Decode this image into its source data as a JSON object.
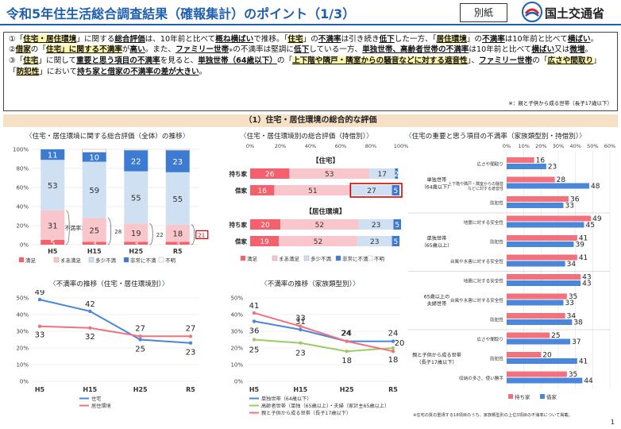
{
  "header": {
    "title": "令和5年住生活総合調査結果（確報集計）のポイント（1/3）",
    "tag": "別紙",
    "ministry": "国土交通省"
  },
  "points": {
    "p1": {
      "a": "①「",
      "b": "住宅・居住環境",
      "c": "」に関する",
      "d": "総合評価",
      "e": "は、10年前と比べて",
      "f": "概ね横ばい",
      "g": "で推移。「",
      "h": "住宅",
      "i": "」の",
      "j": "不満率",
      "k": "は引き続き",
      "l": "低下",
      "m": "した一方、「",
      "n": "居住環境",
      "o": "」の",
      "p": "不満率",
      "q": "は10年前と比べて",
      "r": "横ばい",
      "s": "。"
    },
    "p2": {
      "a": "②",
      "b": "借家",
      "c": "の「",
      "d": "住宅」に関する不満率",
      "e": "が",
      "f": "高い",
      "g": "。また、",
      "h": "ファミリー世帯",
      "i": "※",
      "j": "の不満率は堅調に",
      "k": "低下",
      "l": "している一方、",
      "m": "単独世帯、高齢者世帯の不満率",
      "n": "は10年前と比べて",
      "o": "横ばい",
      "p": "又は",
      "q": "微増",
      "r": "。"
    },
    "p3": {
      "a": "③「",
      "b": "住宅",
      "c": "」に関して",
      "d": "重要と思う項目の不満率",
      "e": "を見ると、",
      "f": "単独世帯（64歳以下）",
      "g": "の「",
      "h": "上下階や隣戸・隣室からの騒音などに対する遮音性",
      "i": "」、",
      "j": "ファミリー世帯",
      "k": "の「",
      "l": "広さや間取り",
      "m": "」「",
      "n": "防犯性",
      "o": "」において",
      "p": "持ち家と借家の不満率の差が大きい",
      "q": "。"
    },
    "note": "※：親と子供から成る世帯（長子17歳以下）"
  },
  "section_title": "（1）住宅・居住環境の総合的な評価",
  "panel_titles": {
    "stacked": "住宅・居住環境に関する総合評価（全体）の推移",
    "tenure": "住宅・居住環境別の総合評価（持借別）",
    "importance": "住宅の重要と思う項目の不満率（家族類型別・持借別）",
    "dissat_env": "不満率の推移（住宅・居住環境別）",
    "dissat_family": "不満率の推移（家族類型別）"
  },
  "colors": {
    "very_satisfied": "#f4606c",
    "satisfied": "#f8c6cb",
    "somewhat_dissatisfied": "#cfe0f2",
    "very_dissatisfied": "#3d7bd1",
    "unknown": "#ffffff",
    "housing": "#4a86d9",
    "environment": "#f2717d",
    "single": "#4a86d9",
    "elderly": "#9ccc65",
    "family": "#f2717d",
    "own": "#f2717d",
    "rent": "#4a86d9",
    "highlight": "#d40000"
  },
  "chart_data": [
    {
      "type": "bar",
      "stacked": true,
      "title": "住宅・居住環境に関する総合評価（全体）の推移",
      "categories": [
        "H5",
        "H15",
        "H25",
        "R5"
      ],
      "series": [
        {
          "name": "満足",
          "values": [
            5,
            3,
            3,
            3
          ]
        },
        {
          "name": "まあ満足",
          "values": [
            31,
            25,
            19,
            18
          ]
        },
        {
          "name": "多少不満",
          "values": [
            53,
            59,
            55,
            55
          ]
        },
        {
          "name": "非常に不満",
          "values": [
            11,
            10,
            22,
            23
          ]
        },
        {
          "name": "不明",
          "values": [
            0,
            3,
            1,
            1
          ]
        }
      ],
      "annotations": {
        "bracket_labels": [
          "不満率36",
          "28",
          "22",
          "21"
        ]
      },
      "ylim": [
        0,
        100
      ],
      "ytick_suffix": "%",
      "legend": [
        "満足",
        "まあ満足",
        "多少不満",
        "非常に不満",
        "不明"
      ]
    },
    {
      "type": "bar",
      "orientation": "horizontal",
      "stacked": true,
      "title": "住宅・居住環境別の総合評価（持借別）",
      "groups": [
        {
          "name": "住宅",
          "rows": [
            {
              "label": "持ち家",
              "values": [
                26,
                53,
                17,
                2
              ]
            },
            {
              "label": "借家",
              "values": [
                16,
                51,
                27,
                5
              ]
            }
          ]
        },
        {
          "name": "居住環境",
          "rows": [
            {
              "label": "持ち家",
              "values": [
                20,
                52,
                23,
                5
              ]
            },
            {
              "label": "借家",
              "values": [
                19,
                52,
                23,
                5
              ]
            }
          ]
        }
      ],
      "series_names": [
        "満足",
        "まあ満足",
        "多少不満",
        "非常に不満",
        "不明"
      ],
      "xlim": [
        0,
        100
      ],
      "xticks": [
        "0%",
        "20%",
        "40%",
        "60%",
        "80%",
        "100%"
      ]
    },
    {
      "type": "bar",
      "orientation": "horizontal",
      "title": "住宅の重要と思う項目の不満率（家族類型別・持借別）",
      "xlim": [
        0,
        60
      ],
      "xticks": [
        "0%",
        "10%",
        "20%",
        "30%",
        "40%",
        "50%",
        "60%"
      ],
      "series_names": [
        "持ち家",
        "借家"
      ],
      "groups": [
        {
          "name": "単独世帯\n（64歳以下）",
          "items": [
            {
              "label": "広さや間取り",
              "own": 16,
              "rent": 23
            },
            {
              "label": "上下階や隣戸・隣室からの騒音などに対する遮音性",
              "own": 28,
              "rent": 48
            },
            {
              "label": "防犯性",
              "own": 36,
              "rent": 33
            }
          ]
        },
        {
          "name": "単独世帯\n（65歳以上）",
          "items": [
            {
              "label": "地震に対する安全性",
              "own": 49,
              "rent": 45
            },
            {
              "label": "防犯性",
              "own": 41,
              "rent": 39
            },
            {
              "label": "台風や水害に対する安全性",
              "own": 41,
              "rent": 34
            }
          ]
        },
        {
          "name": "65歳以上の\n夫婦世帯",
          "items": [
            {
              "label": "地震に対する安全性",
              "own": 43,
              "rent": 43
            },
            {
              "label": "台風や水害に対する安全性",
              "own": 35,
              "rent": 33
            },
            {
              "label": "防犯性",
              "own": 34,
              "rent": 38
            }
          ]
        },
        {
          "name": "親と子供から成る世帯\n（長子17歳以下）",
          "items": [
            {
              "label": "広さや間取り",
              "own": 25,
              "rent": 37
            },
            {
              "label": "防犯性",
              "own": 20,
              "rent": 41
            },
            {
              "label": "収納の多さ、使い勝手",
              "own": 35,
              "rent": 44
            }
          ]
        }
      ],
      "footnote": "※住宅の質の重視する18項目のうち、家族類型別の上位3項目の不満率について掲載。"
    },
    {
      "type": "line",
      "title": "不満率の推移（住宅・居住環境別）",
      "categories": [
        "H5",
        "H15",
        "H25",
        "R5"
      ],
      "series": [
        {
          "name": "住宅",
          "values": [
            49,
            42,
            25,
            23
          ]
        },
        {
          "name": "居住環境",
          "values": [
            33,
            32,
            27,
            27
          ]
        }
      ],
      "ylim": [
        0,
        50
      ],
      "yticks": [
        "0%",
        "10%",
        "20%",
        "30%",
        "40%",
        "50%"
      ]
    },
    {
      "type": "line",
      "title": "不満率の推移（家族類型別）",
      "categories": [
        "H5",
        "H15",
        "H25",
        "R5"
      ],
      "series": [
        {
          "name": "単独世帯（64歳以下）",
          "values": [
            36,
            31,
            24,
            24
          ]
        },
        {
          "name": "高齢者世帯（単独（65歳以上）・夫婦（家計主65歳以上）",
          "values": [
            25,
            23,
            18,
            20
          ]
        },
        {
          "name": "親と子供から成る世帯（長子17歳以下）",
          "values": [
            41,
            33,
            24,
            18
          ]
        }
      ],
      "ylim": [
        0,
        50
      ],
      "yticks": [
        "0%",
        "10%",
        "20%",
        "30%",
        "40%",
        "50%"
      ]
    }
  ],
  "page_number": "1"
}
